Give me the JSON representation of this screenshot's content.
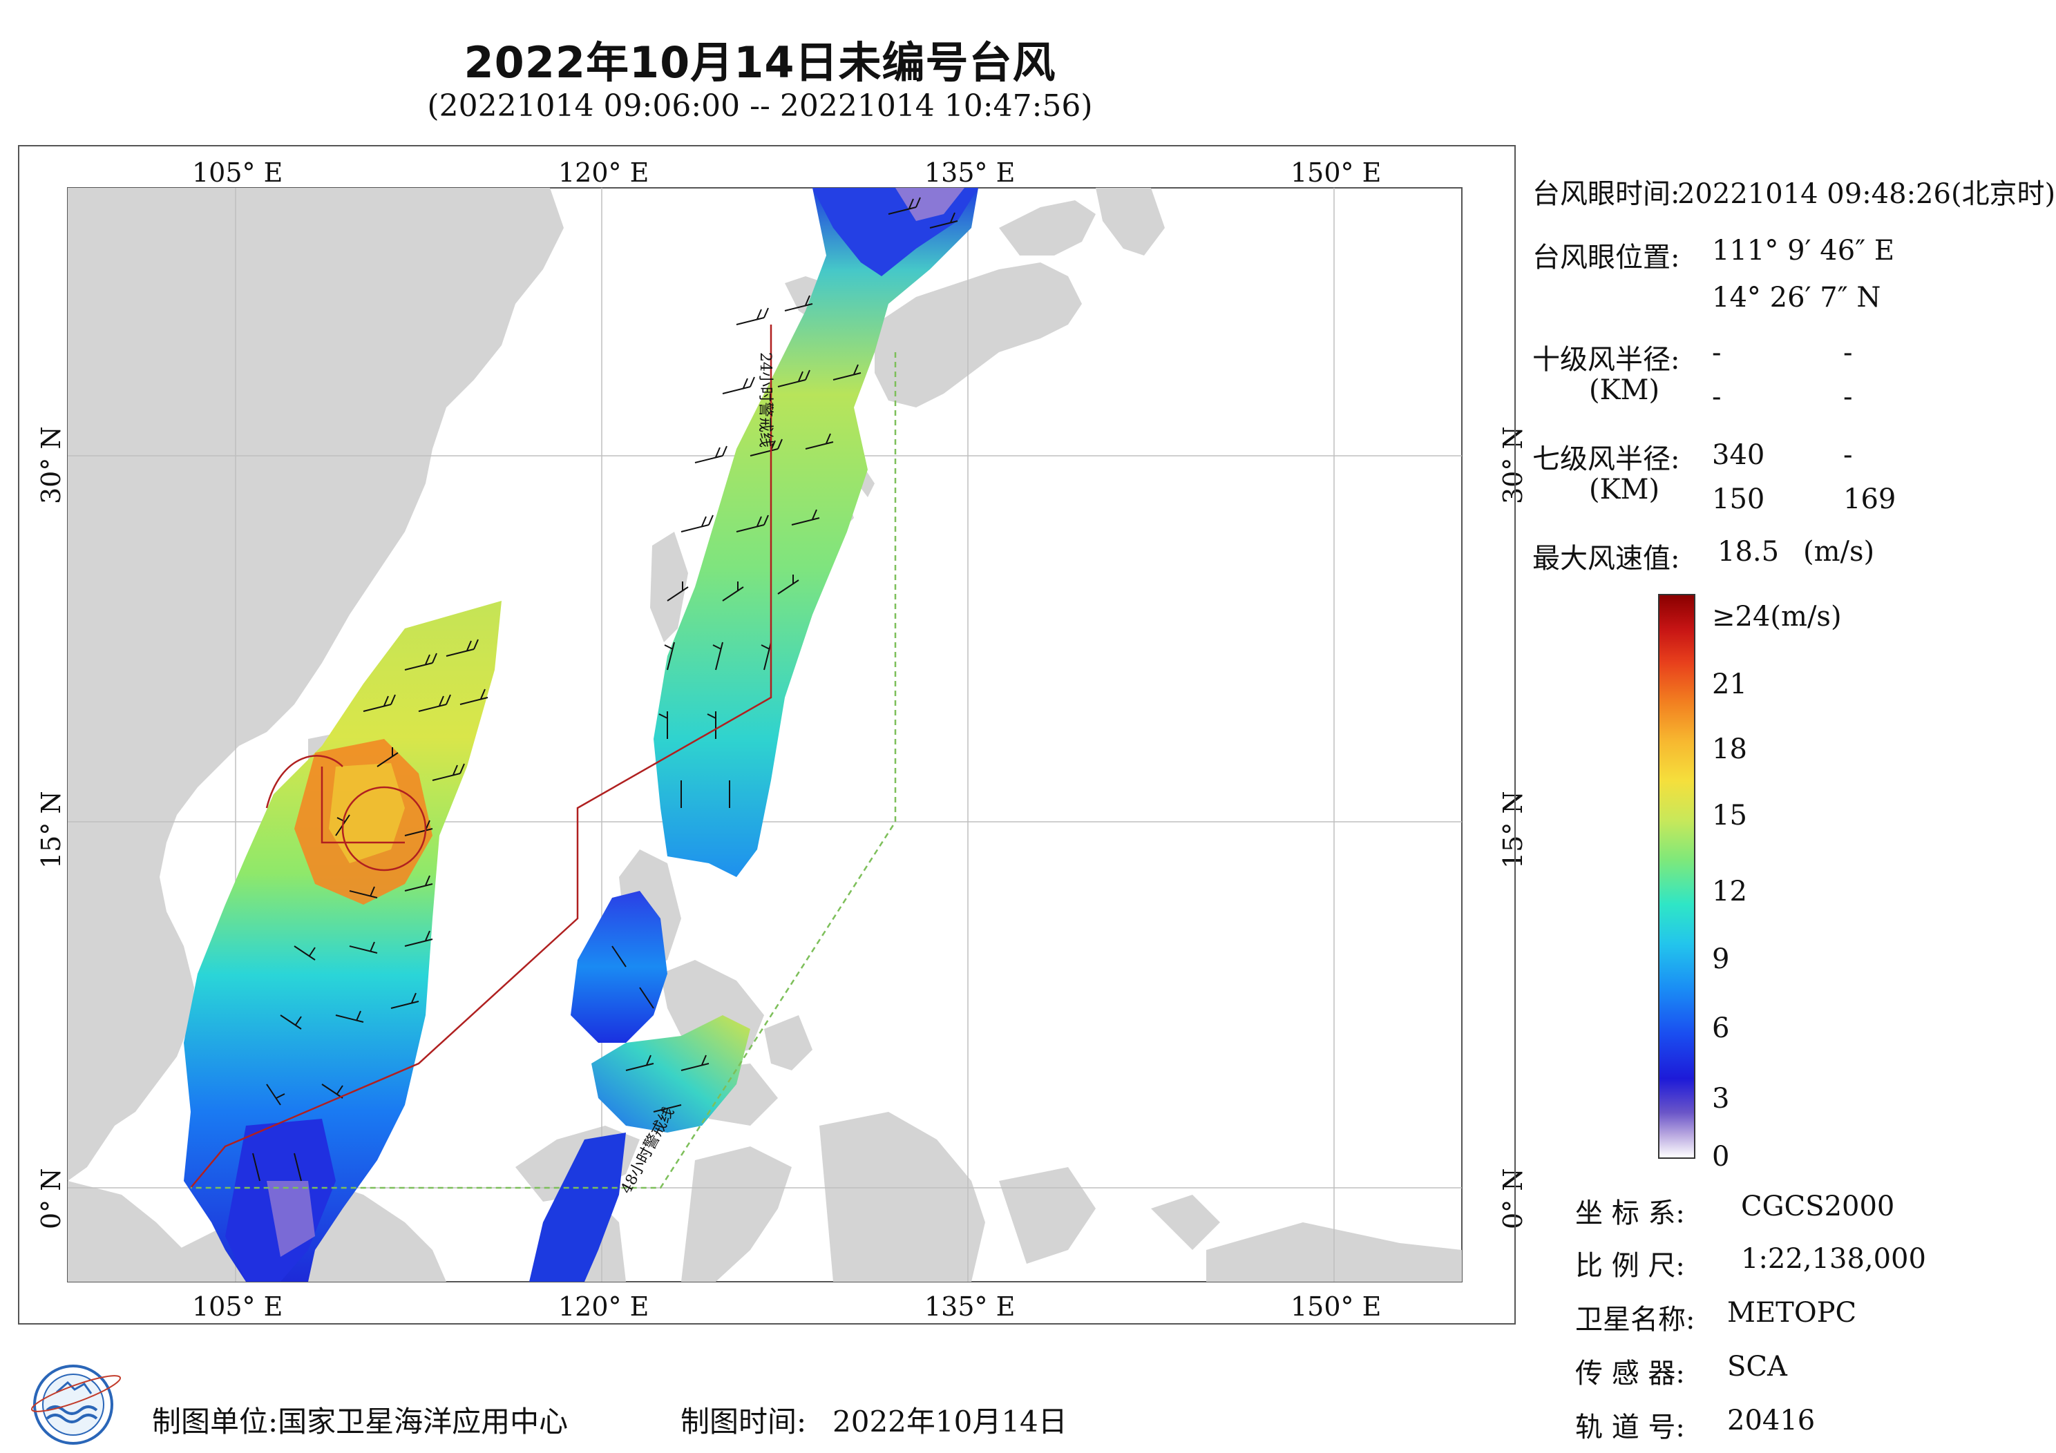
{
  "title": "2022年10月14日未编号台风",
  "subtitle": "(20221014 09:06:00 -- 20221014 10:47:56)",
  "map": {
    "lon_labels_top": [
      "105° E",
      "120° E",
      "135° E",
      "150° E"
    ],
    "lon_labels_bottom": [
      "105° E",
      "120° E",
      "135° E",
      "150° E"
    ],
    "lat_labels_left": [
      "30° N",
      "15° N",
      "0° N"
    ],
    "lat_labels_right": [
      "30° N",
      "15° N",
      "0° N"
    ],
    "annotation_24h": "24小时警戒线",
    "annotation_48h": "48小时警戒线",
    "colors": {
      "land": "#d4d4d4",
      "sea": "#ffffff",
      "warning_24h": "#b02020",
      "warning_48h": "#7dbf5a"
    }
  },
  "info": {
    "eye_time_label": "台风眼时间:",
    "eye_time_value": "20221014 09:48:26(北京时)",
    "eye_pos_label": "台风眼位置:",
    "eye_lon": "111° 9′ 46″ E",
    "eye_lat": "14° 26′ 7″ N",
    "r10_label": "十级风半径:",
    "r10_unit": "(KM)",
    "r10_values": [
      "-",
      "-",
      "-",
      "-"
    ],
    "r7_label": "七级风半径:",
    "r7_unit": "(KM)",
    "r7_values": [
      "340",
      "-",
      "150",
      "169"
    ],
    "max_wind_label": "最大风速值:",
    "max_wind_value": "18.5",
    "max_wind_unit": "(m/s)"
  },
  "colorbar": {
    "top_label": "≥24(m/s)",
    "ticks": [
      "21",
      "18",
      "15",
      "12",
      "9",
      "6",
      "3",
      "0"
    ]
  },
  "meta": {
    "crs_label": "坐 标 系:",
    "crs_value": "CGCS2000",
    "scale_label": "比 例 尺:",
    "scale_value": "1:22,138,000",
    "satellite_label": "卫星名称:",
    "satellite_value": "METOPC",
    "sensor_label": "传 感 器:",
    "sensor_value": "SCA",
    "orbit_label": "轨 道 号:",
    "orbit_value": "20416"
  },
  "footer": {
    "org": "制图单位:国家卫星海洋应用中心",
    "date_label": "制图时间:",
    "date_value": "2022年10月14日"
  }
}
